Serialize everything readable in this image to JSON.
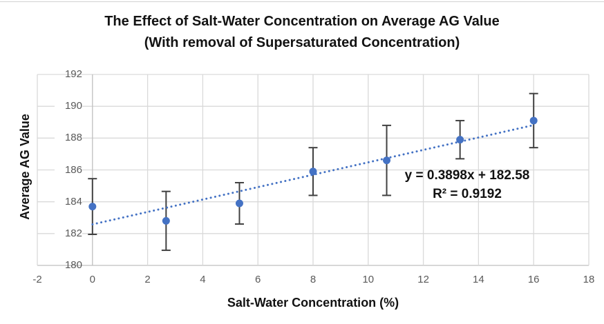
{
  "ui": {
    "title_line1": "The Effect of Salt-Water Concentration on Average AG Value",
    "title_line2": "(With removal of Supersaturated Concentration)",
    "y_axis_label": "Average AG Value",
    "x_axis_label": "Salt-Water Concentration (%)",
    "equation_line1": "y = 0.3898x + 182.58",
    "equation_line2": "R² = 0.9192"
  },
  "colors": {
    "marker": "#4472C4",
    "trendline": "#4472C4",
    "error_bar": "#404040",
    "gridline": "#D9D9D9",
    "axis_line": "#BFBFBF",
    "tick_label": "#595959",
    "title_text": "#121212"
  },
  "chart_data": {
    "type": "scatter",
    "title": "The Effect of Salt-Water Concentration on Average AG Value (With removal of Supersaturated Concentration)",
    "xlabel": "Salt-Water Concentration (%)",
    "ylabel": "Average AG Value",
    "xlim": [
      -2,
      18
    ],
    "ylim": [
      180,
      192
    ],
    "x_ticks": [
      -2,
      0,
      2,
      4,
      6,
      8,
      10,
      12,
      14,
      16,
      18
    ],
    "y_ticks": [
      180,
      182,
      184,
      186,
      188,
      190,
      192
    ],
    "grid": true,
    "legend": "none",
    "points": [
      {
        "x": 0,
        "y": 183.7,
        "error": 1.75
      },
      {
        "x": 2.67,
        "y": 182.8,
        "error": 1.85
      },
      {
        "x": 5.33,
        "y": 183.9,
        "error": 1.3
      },
      {
        "x": 8,
        "y": 185.9,
        "error": 1.5
      },
      {
        "x": 10.67,
        "y": 186.6,
        "error": 2.2
      },
      {
        "x": 13.33,
        "y": 187.9,
        "error": 1.2
      },
      {
        "x": 16,
        "y": 189.1,
        "error": 1.7
      }
    ],
    "trendline": {
      "slope": 0.3898,
      "intercept": 182.58,
      "r_squared": 0.9192,
      "x_start": 0,
      "x_end": 16,
      "style": "dotted"
    },
    "annotations": {
      "equation": "y = 0.3898x + 182.58",
      "r_squared": "R² = 0.9192"
    }
  }
}
